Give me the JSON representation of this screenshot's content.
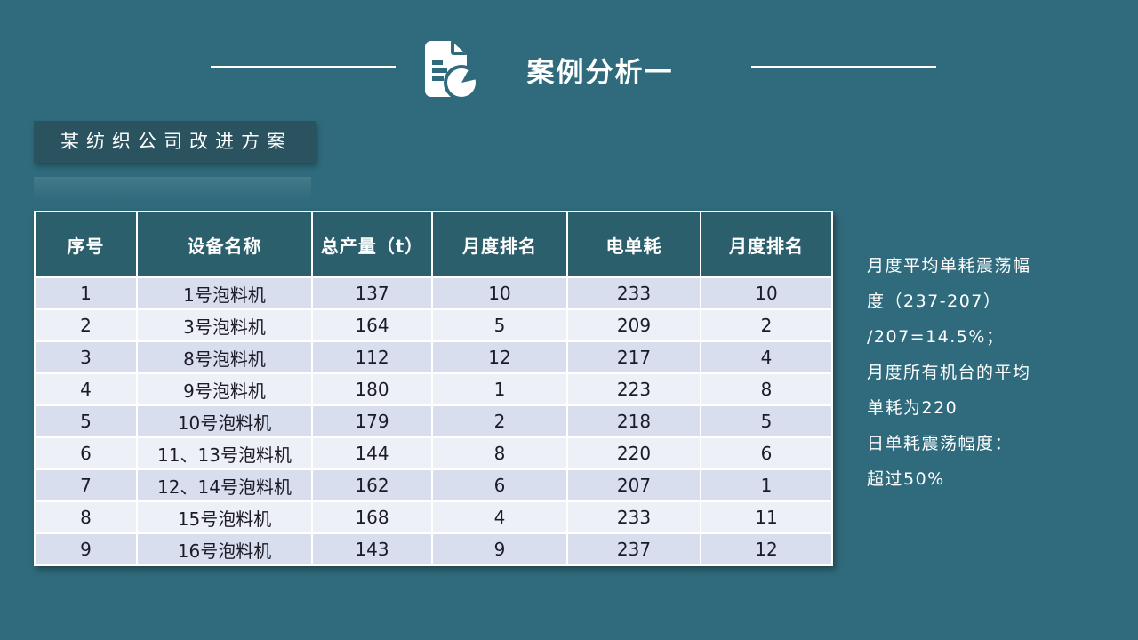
{
  "slide": {
    "background_color": "#2F6B7C",
    "header": {
      "title": "案例分析一",
      "icon": "document-chart-icon"
    },
    "subtitle": "某纺织公司改进方案",
    "table": {
      "columns": [
        "序号",
        "设备名称",
        "总产量（t）",
        "月度排名",
        "电单耗",
        "月度排名"
      ],
      "rows": [
        [
          "1",
          "1号泡料机",
          "137",
          "10",
          "233",
          "10"
        ],
        [
          "2",
          "3号泡料机",
          "164",
          "5",
          "209",
          "2"
        ],
        [
          "3",
          "8号泡料机",
          "112",
          "12",
          "217",
          "4"
        ],
        [
          "4",
          "9号泡料机",
          "180",
          "1",
          "223",
          "8"
        ],
        [
          "5",
          "10号泡料机",
          "179",
          "2",
          "218",
          "5"
        ],
        [
          "6",
          "11、13号泡料机",
          "144",
          "8",
          "220",
          "6"
        ],
        [
          "7",
          "12、14号泡料机",
          "162",
          "6",
          "207",
          "1"
        ],
        [
          "8",
          "15号泡料机",
          "168",
          "4",
          "233",
          "11"
        ],
        [
          "9",
          "16号泡料机",
          "143",
          "9",
          "237",
          "12"
        ]
      ],
      "header_bg": "#2C5F6C",
      "row_odd_bg": "#D9DEEF",
      "row_even_bg": "#EEF0F8"
    },
    "notes": {
      "lines": [
        "月度平均单耗震荡幅",
        "度（237-207）",
        "/207=14.5%；",
        "月度所有机台的平均",
        "单耗为220",
        "日单耗震荡幅度：",
        "超过50%"
      ]
    }
  }
}
